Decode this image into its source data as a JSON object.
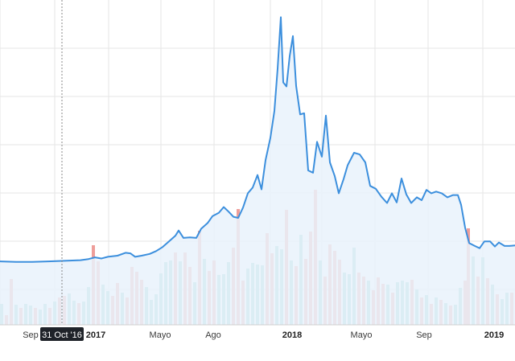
{
  "chart_data": {
    "type": "line",
    "title": "",
    "xlabel": "",
    "ylabel": "",
    "grid": true,
    "colors": {
      "line": "#3c8fdd",
      "area": "#e9f2fb",
      "volume_up": "#8ccfc5",
      "volume_down": "#ee9e9a",
      "grid": "#e6e6e6",
      "cursor_label_bg": "#1f2329"
    },
    "x_ticks": [
      {
        "label": "Sep",
        "bold": false
      },
      {
        "label": "2017",
        "bold": true
      },
      {
        "label": "Mayo",
        "bold": false
      },
      {
        "label": "Ago",
        "bold": false
      },
      {
        "label": "2018",
        "bold": true
      },
      {
        "label": "Mayo",
        "bold": false
      },
      {
        "label": "Sep",
        "bold": false
      },
      {
        "label": "2019",
        "bold": true
      }
    ],
    "cursor_label": "31 Oct '16",
    "price_series": [
      {
        "x": 0,
        "y": 111
      },
      {
        "x": 20,
        "y": 110
      },
      {
        "x": 40,
        "y": 110
      },
      {
        "x": 60,
        "y": 111
      },
      {
        "x": 80,
        "y": 112
      },
      {
        "x": 100,
        "y": 113
      },
      {
        "x": 110,
        "y": 115
      },
      {
        "x": 118,
        "y": 118
      },
      {
        "x": 126,
        "y": 116
      },
      {
        "x": 134,
        "y": 119
      },
      {
        "x": 146,
        "y": 121
      },
      {
        "x": 156,
        "y": 126
      },
      {
        "x": 162,
        "y": 125
      },
      {
        "x": 168,
        "y": 119
      },
      {
        "x": 176,
        "y": 121
      },
      {
        "x": 186,
        "y": 124
      },
      {
        "x": 194,
        "y": 129
      },
      {
        "x": 202,
        "y": 136
      },
      {
        "x": 210,
        "y": 146
      },
      {
        "x": 218,
        "y": 156
      },
      {
        "x": 222,
        "y": 165
      },
      {
        "x": 228,
        "y": 152
      },
      {
        "x": 236,
        "y": 153
      },
      {
        "x": 244,
        "y": 152
      },
      {
        "x": 250,
        "y": 168
      },
      {
        "x": 258,
        "y": 178
      },
      {
        "x": 264,
        "y": 190
      },
      {
        "x": 272,
        "y": 196
      },
      {
        "x": 278,
        "y": 206
      },
      {
        "x": 284,
        "y": 198
      },
      {
        "x": 290,
        "y": 189
      },
      {
        "x": 296,
        "y": 187
      },
      {
        "x": 302,
        "y": 205
      },
      {
        "x": 308,
        "y": 230
      },
      {
        "x": 314,
        "y": 240
      },
      {
        "x": 320,
        "y": 262
      },
      {
        "x": 325,
        "y": 237
      },
      {
        "x": 330,
        "y": 288
      },
      {
        "x": 336,
        "y": 327
      },
      {
        "x": 341,
        "y": 374
      },
      {
        "x": 345,
        "y": 448
      },
      {
        "x": 349,
        "y": 538
      },
      {
        "x": 352,
        "y": 424
      },
      {
        "x": 356,
        "y": 417
      },
      {
        "x": 360,
        "y": 470
      },
      {
        "x": 364,
        "y": 505
      },
      {
        "x": 368,
        "y": 418
      },
      {
        "x": 373,
        "y": 368
      },
      {
        "x": 378,
        "y": 370
      },
      {
        "x": 383,
        "y": 270
      },
      {
        "x": 389,
        "y": 266
      },
      {
        "x": 394,
        "y": 320
      },
      {
        "x": 400,
        "y": 294
      },
      {
        "x": 405,
        "y": 366
      },
      {
        "x": 410,
        "y": 284
      },
      {
        "x": 416,
        "y": 260
      },
      {
        "x": 421,
        "y": 230
      },
      {
        "x": 427,
        "y": 255
      },
      {
        "x": 432,
        "y": 279
      },
      {
        "x": 440,
        "y": 301
      },
      {
        "x": 447,
        "y": 298
      },
      {
        "x": 454,
        "y": 284
      },
      {
        "x": 460,
        "y": 243
      },
      {
        "x": 467,
        "y": 238
      },
      {
        "x": 474,
        "y": 224
      },
      {
        "x": 481,
        "y": 213
      },
      {
        "x": 487,
        "y": 230
      },
      {
        "x": 493,
        "y": 214
      },
      {
        "x": 499,
        "y": 256
      },
      {
        "x": 505,
        "y": 228
      },
      {
        "x": 511,
        "y": 213
      },
      {
        "x": 518,
        "y": 223
      },
      {
        "x": 524,
        "y": 218
      },
      {
        "x": 530,
        "y": 236
      },
      {
        "x": 536,
        "y": 230
      },
      {
        "x": 542,
        "y": 233
      },
      {
        "x": 549,
        "y": 230
      },
      {
        "x": 556,
        "y": 223
      },
      {
        "x": 563,
        "y": 227
      },
      {
        "x": 569,
        "y": 227
      },
      {
        "x": 573,
        "y": 210
      },
      {
        "x": 578,
        "y": 170
      },
      {
        "x": 583,
        "y": 143
      },
      {
        "x": 590,
        "y": 138
      },
      {
        "x": 596,
        "y": 134
      },
      {
        "x": 602,
        "y": 146
      },
      {
        "x": 609,
        "y": 146
      },
      {
        "x": 615,
        "y": 137
      },
      {
        "x": 620,
        "y": 144
      },
      {
        "x": 627,
        "y": 138
      },
      {
        "x": 633,
        "y": 138
      },
      {
        "x": 640,
        "y": 139
      }
    ],
    "volume_series": [
      {
        "x": 0,
        "v": 26,
        "up": true
      },
      {
        "x": 6,
        "v": 12,
        "up": false
      },
      {
        "x": 12,
        "v": 57,
        "up": false
      },
      {
        "x": 18,
        "v": 25,
        "up": true
      },
      {
        "x": 24,
        "v": 21,
        "up": false
      },
      {
        "x": 30,
        "v": 26,
        "up": true
      },
      {
        "x": 36,
        "v": 24,
        "up": true
      },
      {
        "x": 42,
        "v": 21,
        "up": false
      },
      {
        "x": 48,
        "v": 19,
        "up": true
      },
      {
        "x": 54,
        "v": 26,
        "up": true
      },
      {
        "x": 60,
        "v": 21,
        "up": false
      },
      {
        "x": 66,
        "v": 29,
        "up": true
      },
      {
        "x": 72,
        "v": 34,
        "up": false
      },
      {
        "x": 78,
        "v": 36,
        "up": false
      },
      {
        "x": 84,
        "v": 39,
        "up": true
      },
      {
        "x": 90,
        "v": 30,
        "up": true
      },
      {
        "x": 96,
        "v": 27,
        "up": false
      },
      {
        "x": 102,
        "v": 29,
        "up": true
      },
      {
        "x": 108,
        "v": 47,
        "up": true
      },
      {
        "x": 114,
        "v": 99,
        "up": false
      },
      {
        "x": 120,
        "v": 79,
        "up": false
      },
      {
        "x": 126,
        "v": 50,
        "up": true
      },
      {
        "x": 132,
        "v": 42,
        "up": true
      },
      {
        "x": 138,
        "v": 36,
        "up": false
      },
      {
        "x": 144,
        "v": 52,
        "up": false
      },
      {
        "x": 150,
        "v": 40,
        "up": true
      },
      {
        "x": 156,
        "v": 34,
        "up": false
      },
      {
        "x": 162,
        "v": 72,
        "up": false
      },
      {
        "x": 168,
        "v": 66,
        "up": false
      },
      {
        "x": 174,
        "v": 56,
        "up": false
      },
      {
        "x": 180,
        "v": 47,
        "up": true
      },
      {
        "x": 186,
        "v": 31,
        "up": true
      },
      {
        "x": 192,
        "v": 38,
        "up": true
      },
      {
        "x": 198,
        "v": 64,
        "up": true
      },
      {
        "x": 204,
        "v": 78,
        "up": true
      },
      {
        "x": 210,
        "v": 80,
        "up": true
      },
      {
        "x": 216,
        "v": 90,
        "up": false
      },
      {
        "x": 222,
        "v": 79,
        "up": true
      },
      {
        "x": 228,
        "v": 90,
        "up": false
      },
      {
        "x": 234,
        "v": 72,
        "up": false
      },
      {
        "x": 240,
        "v": 53,
        "up": true
      },
      {
        "x": 246,
        "v": 117,
        "up": false
      },
      {
        "x": 252,
        "v": 82,
        "up": true
      },
      {
        "x": 258,
        "v": 67,
        "up": false
      },
      {
        "x": 264,
        "v": 80,
        "up": false
      },
      {
        "x": 270,
        "v": 62,
        "up": true
      },
      {
        "x": 276,
        "v": 63,
        "up": true
      },
      {
        "x": 282,
        "v": 78,
        "up": true
      },
      {
        "x": 288,
        "v": 96,
        "up": false
      },
      {
        "x": 294,
        "v": 144,
        "up": false
      },
      {
        "x": 300,
        "v": 55,
        "up": false
      },
      {
        "x": 306,
        "v": 70,
        "up": true
      },
      {
        "x": 312,
        "v": 77,
        "up": true
      },
      {
        "x": 318,
        "v": 75,
        "up": true
      },
      {
        "x": 324,
        "v": 74,
        "up": true
      },
      {
        "x": 330,
        "v": 114,
        "up": false
      },
      {
        "x": 336,
        "v": 89,
        "up": false
      },
      {
        "x": 342,
        "v": 98,
        "up": true
      },
      {
        "x": 348,
        "v": 94,
        "up": true
      },
      {
        "x": 354,
        "v": 143,
        "up": false
      },
      {
        "x": 360,
        "v": 80,
        "up": true
      },
      {
        "x": 366,
        "v": 73,
        "up": false
      },
      {
        "x": 372,
        "v": 112,
        "up": true
      },
      {
        "x": 378,
        "v": 82,
        "up": false
      },
      {
        "x": 384,
        "v": 116,
        "up": false
      },
      {
        "x": 390,
        "v": 168,
        "up": false
      },
      {
        "x": 396,
        "v": 80,
        "up": true
      },
      {
        "x": 402,
        "v": 60,
        "up": false
      },
      {
        "x": 408,
        "v": 100,
        "up": false
      },
      {
        "x": 414,
        "v": 92,
        "up": false
      },
      {
        "x": 420,
        "v": 81,
        "up": false
      },
      {
        "x": 426,
        "v": 65,
        "up": true
      },
      {
        "x": 432,
        "v": 63,
        "up": true
      },
      {
        "x": 438,
        "v": 96,
        "up": true
      },
      {
        "x": 444,
        "v": 65,
        "up": false
      },
      {
        "x": 450,
        "v": 60,
        "up": false
      },
      {
        "x": 456,
        "v": 55,
        "up": true
      },
      {
        "x": 462,
        "v": 43,
        "up": false
      },
      {
        "x": 468,
        "v": 59,
        "up": false
      },
      {
        "x": 474,
        "v": 51,
        "up": false
      },
      {
        "x": 480,
        "v": 50,
        "up": true
      },
      {
        "x": 486,
        "v": 40,
        "up": false
      },
      {
        "x": 492,
        "v": 53,
        "up": true
      },
      {
        "x": 498,
        "v": 55,
        "up": true
      },
      {
        "x": 504,
        "v": 53,
        "up": true
      },
      {
        "x": 510,
        "v": 56,
        "up": false
      },
      {
        "x": 516,
        "v": 44,
        "up": true
      },
      {
        "x": 522,
        "v": 34,
        "up": false
      },
      {
        "x": 528,
        "v": 37,
        "up": true
      },
      {
        "x": 534,
        "v": 26,
        "up": false
      },
      {
        "x": 540,
        "v": 34,
        "up": true
      },
      {
        "x": 546,
        "v": 31,
        "up": false
      },
      {
        "x": 552,
        "v": 27,
        "up": true
      },
      {
        "x": 558,
        "v": 24,
        "up": false
      },
      {
        "x": 564,
        "v": 25,
        "up": true
      },
      {
        "x": 570,
        "v": 46,
        "up": true
      },
      {
        "x": 576,
        "v": 55,
        "up": false
      },
      {
        "x": 580,
        "v": 120,
        "up": false
      },
      {
        "x": 586,
        "v": 85,
        "up": true
      },
      {
        "x": 592,
        "v": 60,
        "up": false
      },
      {
        "x": 598,
        "v": 84,
        "up": true
      },
      {
        "x": 604,
        "v": 58,
        "up": false
      },
      {
        "x": 610,
        "v": 50,
        "up": true
      },
      {
        "x": 616,
        "v": 38,
        "up": false
      },
      {
        "x": 622,
        "v": 32,
        "up": true
      },
      {
        "x": 628,
        "v": 40,
        "up": true
      },
      {
        "x": 634,
        "v": 40,
        "up": false
      }
    ]
  }
}
